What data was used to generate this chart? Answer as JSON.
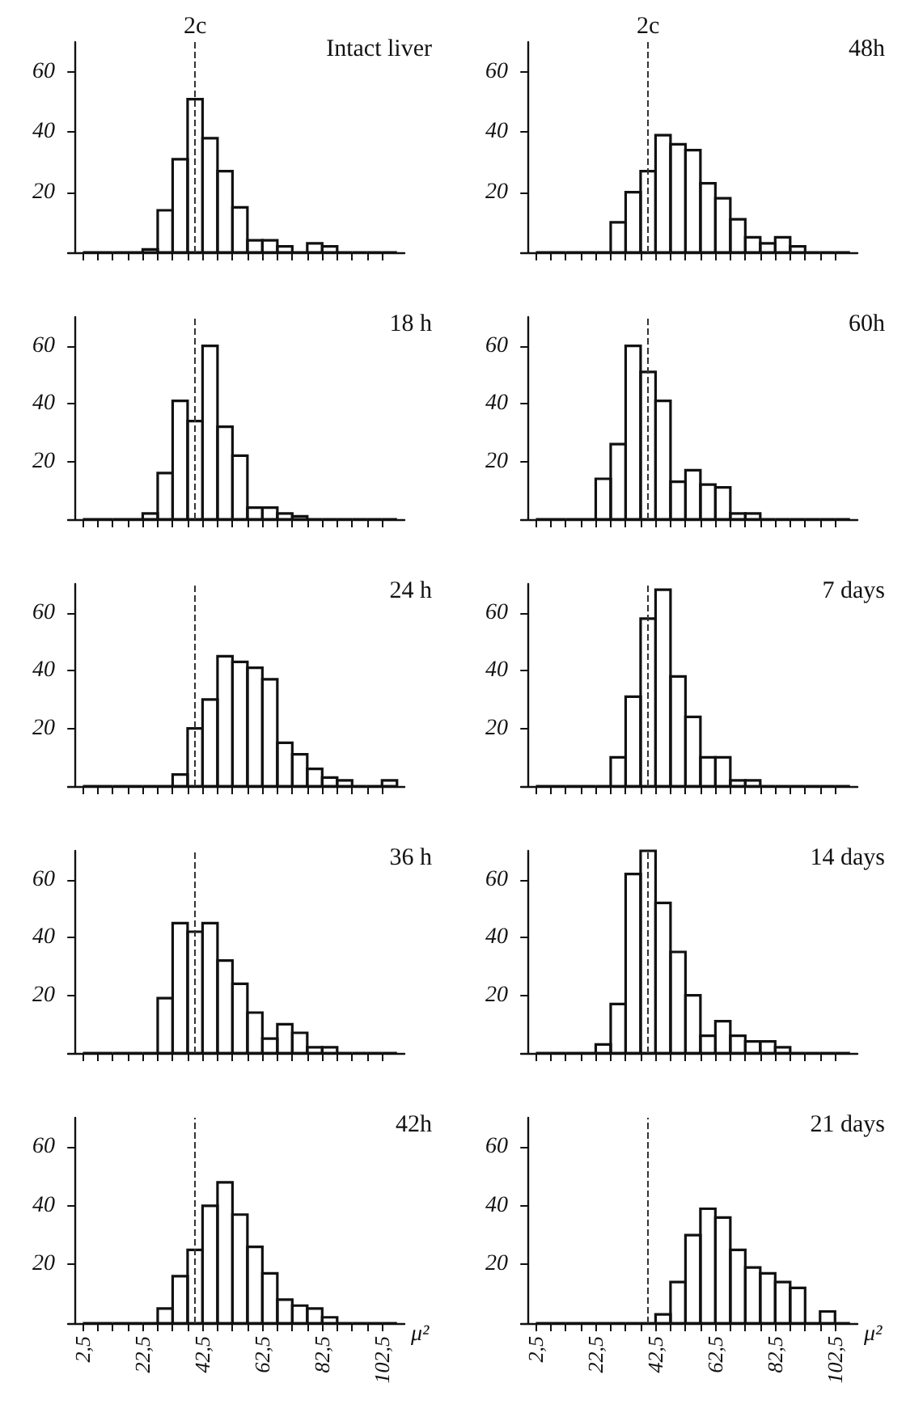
{
  "chart_data": [
    {
      "type": "histogram",
      "title": "Intact liver",
      "bins": [
        2.5,
        7.5,
        12.5,
        17.5,
        22.5,
        27.5,
        32.5,
        37.5,
        42.5,
        47.5,
        52.5,
        57.5,
        62.5,
        67.5,
        72.5,
        77.5,
        82.5,
        87.5,
        92.5,
        97.5,
        102.5,
        107.5
      ],
      "values": [
        0,
        0,
        0,
        0,
        1,
        14,
        31,
        51,
        38,
        27,
        15,
        4,
        4,
        2,
        0,
        3,
        2,
        0,
        0,
        0,
        0
      ],
      "color": "#111111",
      "xlim": [
        -2.5,
        110
      ],
      "xticks": [
        2.5,
        7.5,
        12.5,
        17.5,
        22.5,
        27.5,
        32.5,
        37.5,
        42.5,
        47.5,
        52.5,
        57.5,
        62.5,
        67.5,
        72.5,
        77.5,
        82.5,
        87.5,
        92.5,
        97.5,
        102.5
      ],
      "ylim": [
        0,
        70
      ],
      "yticks": [
        20,
        40,
        60
      ],
      "tick_labels": "y",
      "ref_lines": [
        {
          "axis": "x",
          "value": 40,
          "label": "2c",
          "line_style": "dashed"
        }
      ]
    },
    {
      "type": "histogram",
      "title": "48h",
      "bins": [
        2.5,
        7.5,
        12.5,
        17.5,
        22.5,
        27.5,
        32.5,
        37.5,
        42.5,
        47.5,
        52.5,
        57.5,
        62.5,
        67.5,
        72.5,
        77.5,
        82.5,
        87.5,
        92.5,
        97.5,
        102.5,
        107.5
      ],
      "values": [
        0,
        0,
        0,
        0,
        0,
        10,
        20,
        27,
        39,
        36,
        34,
        23,
        18,
        11,
        5,
        3,
        5,
        2,
        0,
        0,
        0
      ],
      "color": "#111111",
      "xlim": [
        -2.5,
        110
      ],
      "xticks": [
        2.5,
        7.5,
        12.5,
        17.5,
        22.5,
        27.5,
        32.5,
        37.5,
        42.5,
        47.5,
        52.5,
        57.5,
        62.5,
        67.5,
        72.5,
        77.5,
        82.5,
        87.5,
        92.5,
        97.5,
        102.5
      ],
      "ylim": [
        0,
        70
      ],
      "yticks": [
        20,
        40,
        60
      ],
      "tick_labels": "y",
      "ref_lines": [
        {
          "axis": "x",
          "value": 40,
          "label": "2c",
          "line_style": "dashed"
        }
      ]
    },
    {
      "type": "histogram",
      "title": "18 h",
      "bins": [
        2.5,
        7.5,
        12.5,
        17.5,
        22.5,
        27.5,
        32.5,
        37.5,
        42.5,
        47.5,
        52.5,
        57.5,
        62.5,
        67.5,
        72.5,
        77.5,
        82.5,
        87.5,
        92.5,
        97.5,
        102.5,
        107.5
      ],
      "values": [
        0,
        0,
        0,
        0,
        2,
        16,
        41,
        34,
        60,
        32,
        22,
        4,
        4,
        2,
        1,
        0,
        0,
        0,
        0,
        0,
        0
      ],
      "color": "#111111",
      "xlim": [
        -2.5,
        110
      ],
      "xticks": [
        2.5,
        7.5,
        12.5,
        17.5,
        22.5,
        27.5,
        32.5,
        37.5,
        42.5,
        47.5,
        52.5,
        57.5,
        62.5,
        67.5,
        72.5,
        77.5,
        82.5,
        87.5,
        92.5,
        97.5,
        102.5
      ],
      "ylim": [
        0,
        70
      ],
      "yticks": [
        20,
        40,
        60
      ],
      "tick_labels": "y",
      "ref_lines": [
        {
          "axis": "x",
          "value": 40,
          "line_style": "dashed"
        }
      ]
    },
    {
      "type": "histogram",
      "title": "60h",
      "bins": [
        2.5,
        7.5,
        12.5,
        17.5,
        22.5,
        27.5,
        32.5,
        37.5,
        42.5,
        47.5,
        52.5,
        57.5,
        62.5,
        67.5,
        72.5,
        77.5,
        82.5,
        87.5,
        92.5,
        97.5,
        102.5,
        107.5
      ],
      "values": [
        0,
        0,
        0,
        0,
        14,
        26,
        60,
        51,
        41,
        13,
        17,
        12,
        11,
        2,
        2,
        0,
        0,
        0,
        0,
        0,
        0
      ],
      "color": "#111111",
      "xlim": [
        -2.5,
        110
      ],
      "xticks": [
        2.5,
        7.5,
        12.5,
        17.5,
        22.5,
        27.5,
        32.5,
        37.5,
        42.5,
        47.5,
        52.5,
        57.5,
        62.5,
        67.5,
        72.5,
        77.5,
        82.5,
        87.5,
        92.5,
        97.5,
        102.5
      ],
      "ylim": [
        0,
        70
      ],
      "yticks": [
        20,
        40,
        60
      ],
      "tick_labels": "y",
      "ref_lines": [
        {
          "axis": "x",
          "value": 40,
          "line_style": "dashed"
        }
      ]
    },
    {
      "type": "histogram",
      "title": "24 h",
      "bins": [
        2.5,
        7.5,
        12.5,
        17.5,
        22.5,
        27.5,
        32.5,
        37.5,
        42.5,
        47.5,
        52.5,
        57.5,
        62.5,
        67.5,
        72.5,
        77.5,
        82.5,
        87.5,
        92.5,
        97.5,
        102.5,
        107.5
      ],
      "values": [
        0,
        0,
        0,
        0,
        0,
        0,
        4,
        20,
        30,
        45,
        43,
        41,
        37,
        15,
        11,
        6,
        3,
        2,
        0,
        0,
        2
      ],
      "color": "#111111",
      "xlim": [
        -2.5,
        110
      ],
      "xticks": [
        2.5,
        7.5,
        12.5,
        17.5,
        22.5,
        27.5,
        32.5,
        37.5,
        42.5,
        47.5,
        52.5,
        57.5,
        62.5,
        67.5,
        72.5,
        77.5,
        82.5,
        87.5,
        92.5,
        97.5,
        102.5
      ],
      "ylim": [
        0,
        70
      ],
      "yticks": [
        20,
        40,
        60
      ],
      "tick_labels": "y",
      "ref_lines": [
        {
          "axis": "x",
          "value": 40,
          "line_style": "dashed"
        }
      ]
    },
    {
      "type": "histogram",
      "title": "7 days",
      "bins": [
        2.5,
        7.5,
        12.5,
        17.5,
        22.5,
        27.5,
        32.5,
        37.5,
        42.5,
        47.5,
        52.5,
        57.5,
        62.5,
        67.5,
        72.5,
        77.5,
        82.5,
        87.5,
        92.5,
        97.5,
        102.5,
        107.5
      ],
      "values": [
        0,
        0,
        0,
        0,
        0,
        10,
        31,
        58,
        68,
        38,
        24,
        10,
        10,
        2,
        2,
        0,
        0,
        0,
        0,
        0,
        0
      ],
      "color": "#111111",
      "xlim": [
        -2.5,
        110
      ],
      "xticks": [
        2.5,
        7.5,
        12.5,
        17.5,
        22.5,
        27.5,
        32.5,
        37.5,
        42.5,
        47.5,
        52.5,
        57.5,
        62.5,
        67.5,
        72.5,
        77.5,
        82.5,
        87.5,
        92.5,
        97.5,
        102.5
      ],
      "ylim": [
        0,
        70
      ],
      "yticks": [
        20,
        40,
        60
      ],
      "tick_labels": "y",
      "ref_lines": [
        {
          "axis": "x",
          "value": 40,
          "line_style": "dashed"
        }
      ]
    },
    {
      "type": "histogram",
      "title": "36 h",
      "bins": [
        2.5,
        7.5,
        12.5,
        17.5,
        22.5,
        27.5,
        32.5,
        37.5,
        42.5,
        47.5,
        52.5,
        57.5,
        62.5,
        67.5,
        72.5,
        77.5,
        82.5,
        87.5,
        92.5,
        97.5,
        102.5,
        107.5
      ],
      "values": [
        0,
        0,
        0,
        0,
        0,
        19,
        45,
        42,
        45,
        32,
        24,
        14,
        5,
        10,
        7,
        2,
        2,
        0,
        0,
        0,
        0
      ],
      "color": "#111111",
      "xlim": [
        -2.5,
        110
      ],
      "xticks": [
        2.5,
        7.5,
        12.5,
        17.5,
        22.5,
        27.5,
        32.5,
        37.5,
        42.5,
        47.5,
        52.5,
        57.5,
        62.5,
        67.5,
        72.5,
        77.5,
        82.5,
        87.5,
        92.5,
        97.5,
        102.5
      ],
      "ylim": [
        0,
        70
      ],
      "yticks": [
        20,
        40,
        60
      ],
      "tick_labels": "y",
      "ref_lines": [
        {
          "axis": "x",
          "value": 40,
          "line_style": "dashed"
        }
      ]
    },
    {
      "type": "histogram",
      "title": "14 days",
      "bins": [
        2.5,
        7.5,
        12.5,
        17.5,
        22.5,
        27.5,
        32.5,
        37.5,
        42.5,
        47.5,
        52.5,
        57.5,
        62.5,
        67.5,
        72.5,
        77.5,
        82.5,
        87.5,
        92.5,
        97.5,
        102.5,
        107.5
      ],
      "values": [
        0,
        0,
        0,
        0,
        3,
        17,
        62,
        70,
        52,
        35,
        20,
        6,
        11,
        6,
        4,
        4,
        2,
        0,
        0,
        0,
        0
      ],
      "color": "#111111",
      "xlim": [
        -2.5,
        110
      ],
      "xticks": [
        2.5,
        7.5,
        12.5,
        17.5,
        22.5,
        27.5,
        32.5,
        37.5,
        42.5,
        47.5,
        52.5,
        57.5,
        62.5,
        67.5,
        72.5,
        77.5,
        82.5,
        87.5,
        92.5,
        97.5,
        102.5
      ],
      "ylim": [
        0,
        70
      ],
      "yticks": [
        20,
        40,
        60
      ],
      "tick_labels": "y",
      "ref_lines": [
        {
          "axis": "x",
          "value": 40,
          "line_style": "dashed"
        }
      ]
    },
    {
      "type": "histogram",
      "title": "42h",
      "xlabel": "μ²",
      "bins": [
        2.5,
        7.5,
        12.5,
        17.5,
        22.5,
        27.5,
        32.5,
        37.5,
        42.5,
        47.5,
        52.5,
        57.5,
        62.5,
        67.5,
        72.5,
        77.5,
        82.5,
        87.5,
        92.5,
        97.5,
        102.5,
        107.5
      ],
      "values": [
        0,
        0,
        0,
        0,
        0,
        5,
        16,
        25,
        40,
        48,
        37,
        26,
        17,
        8,
        6,
        5,
        2,
        0,
        0,
        0,
        0
      ],
      "color": "#111111",
      "xlim": [
        -2.5,
        110
      ],
      "xticks": [
        {
          "value": 2.5,
          "label": "2,5"
        },
        {
          "value": 7.5,
          "label": null
        },
        {
          "value": 12.5,
          "label": null
        },
        {
          "value": 17.5,
          "label": null
        },
        {
          "value": 22.5,
          "label": "22,5"
        },
        {
          "value": 27.5,
          "label": null
        },
        {
          "value": 32.5,
          "label": null
        },
        {
          "value": 37.5,
          "label": null
        },
        {
          "value": 42.5,
          "label": "42,5"
        },
        {
          "value": 47.5,
          "label": null
        },
        {
          "value": 52.5,
          "label": null
        },
        {
          "value": 57.5,
          "label": null
        },
        {
          "value": 62.5,
          "label": "62,5"
        },
        {
          "value": 67.5,
          "label": null
        },
        {
          "value": 72.5,
          "label": null
        },
        {
          "value": 77.5,
          "label": null
        },
        {
          "value": 82.5,
          "label": "82,5"
        },
        {
          "value": 87.5,
          "label": null
        },
        {
          "value": 92.5,
          "label": null
        },
        {
          "value": 97.5,
          "label": null
        },
        {
          "value": 102.5,
          "label": "102,5"
        }
      ],
      "ylim": [
        0,
        70
      ],
      "yticks": [
        20,
        40,
        60
      ],
      "ref_lines": [
        {
          "axis": "x",
          "value": 40,
          "line_style": "dashed"
        }
      ]
    },
    {
      "type": "histogram",
      "title": "21 days",
      "xlabel": "μ²",
      "bins": [
        2.5,
        7.5,
        12.5,
        17.5,
        22.5,
        27.5,
        32.5,
        37.5,
        42.5,
        47.5,
        52.5,
        57.5,
        62.5,
        67.5,
        72.5,
        77.5,
        82.5,
        87.5,
        92.5,
        97.5,
        102.5,
        107.5
      ],
      "values": [
        0,
        0,
        0,
        0,
        0,
        0,
        0,
        0,
        3,
        14,
        30,
        39,
        36,
        25,
        19,
        17,
        14,
        12,
        0,
        4,
        0
      ],
      "color": "#111111",
      "xlim": [
        -2.5,
        110
      ],
      "xticks": [
        {
          "value": 2.5,
          "label": "2,5"
        },
        {
          "value": 7.5,
          "label": null
        },
        {
          "value": 12.5,
          "label": null
        },
        {
          "value": 17.5,
          "label": null
        },
        {
          "value": 22.5,
          "label": "22,5"
        },
        {
          "value": 27.5,
          "label": null
        },
        {
          "value": 32.5,
          "label": null
        },
        {
          "value": 37.5,
          "label": null
        },
        {
          "value": 42.5,
          "label": "42,5"
        },
        {
          "value": 47.5,
          "label": null
        },
        {
          "value": 52.5,
          "label": null
        },
        {
          "value": 57.5,
          "label": null
        },
        {
          "value": 62.5,
          "label": "62,5"
        },
        {
          "value": 67.5,
          "label": null
        },
        {
          "value": 72.5,
          "label": null
        },
        {
          "value": 77.5,
          "label": null
        },
        {
          "value": 82.5,
          "label": "82,5"
        },
        {
          "value": 87.5,
          "label": null
        },
        {
          "value": 92.5,
          "label": null
        },
        {
          "value": 97.5,
          "label": null
        },
        {
          "value": 102.5,
          "label": "102,5"
        }
      ],
      "ylim": [
        0,
        70
      ],
      "yticks": [
        20,
        40,
        60
      ],
      "ref_lines": [
        {
          "axis": "x",
          "value": 40,
          "line_style": "dashed"
        }
      ]
    }
  ]
}
